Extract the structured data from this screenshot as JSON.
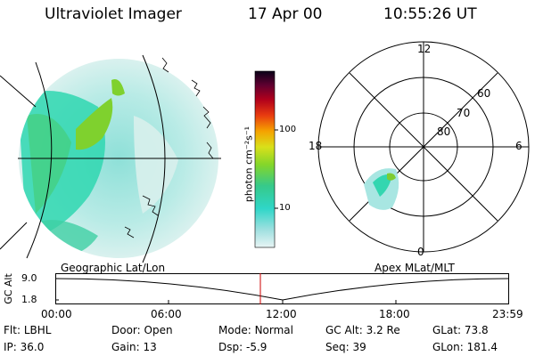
{
  "header": {
    "title": "Ultraviolet Imager",
    "date": "17 Apr 00",
    "time": "10:55:26 UT"
  },
  "colorbar": {
    "label": "photon cm⁻²s⁻¹",
    "tick_labels": [
      "100",
      "10"
    ]
  },
  "polar_plot": {
    "mlt_labels": {
      "top": "12",
      "left": "18",
      "right": "6",
      "bottom": "0"
    },
    "lat_labels": [
      "60",
      "70",
      "80"
    ]
  },
  "orbit_strip": {
    "left_label": "Geographic Lat/Lon",
    "right_label": "Apex MLat/MLT",
    "axis_label": "GC Alt",
    "y_ticks": [
      "9.0",
      "1.8"
    ],
    "x_ticks": [
      "00:00",
      "06:00",
      "12:00",
      "18:00",
      "23:59"
    ],
    "marker_color": "#cc0000"
  },
  "status": {
    "row1": [
      {
        "label": "Flt:",
        "value": "LBHL"
      },
      {
        "label": "Door:",
        "value": "Open"
      },
      {
        "label": "Mode:",
        "value": "Normal"
      },
      {
        "label": "GC Alt:",
        "value": "3.2 Re"
      },
      {
        "label": "GLat:",
        "value": "73.8"
      }
    ],
    "row2": [
      {
        "label": "IP:",
        "value": "36.0"
      },
      {
        "label": "Gain:",
        "value": "13"
      },
      {
        "label": "Dsp:",
        "value": "-5.9"
      },
      {
        "label": "Seq:",
        "value": "39"
      },
      {
        "label": "GLon:",
        "value": "181.4"
      }
    ]
  },
  "colors": {
    "background": "#ffffff",
    "line": "#000000",
    "aurora_low": "#bfe8e8",
    "aurora_mid": "#33d6b0",
    "aurora_high": "#7ecc33"
  }
}
